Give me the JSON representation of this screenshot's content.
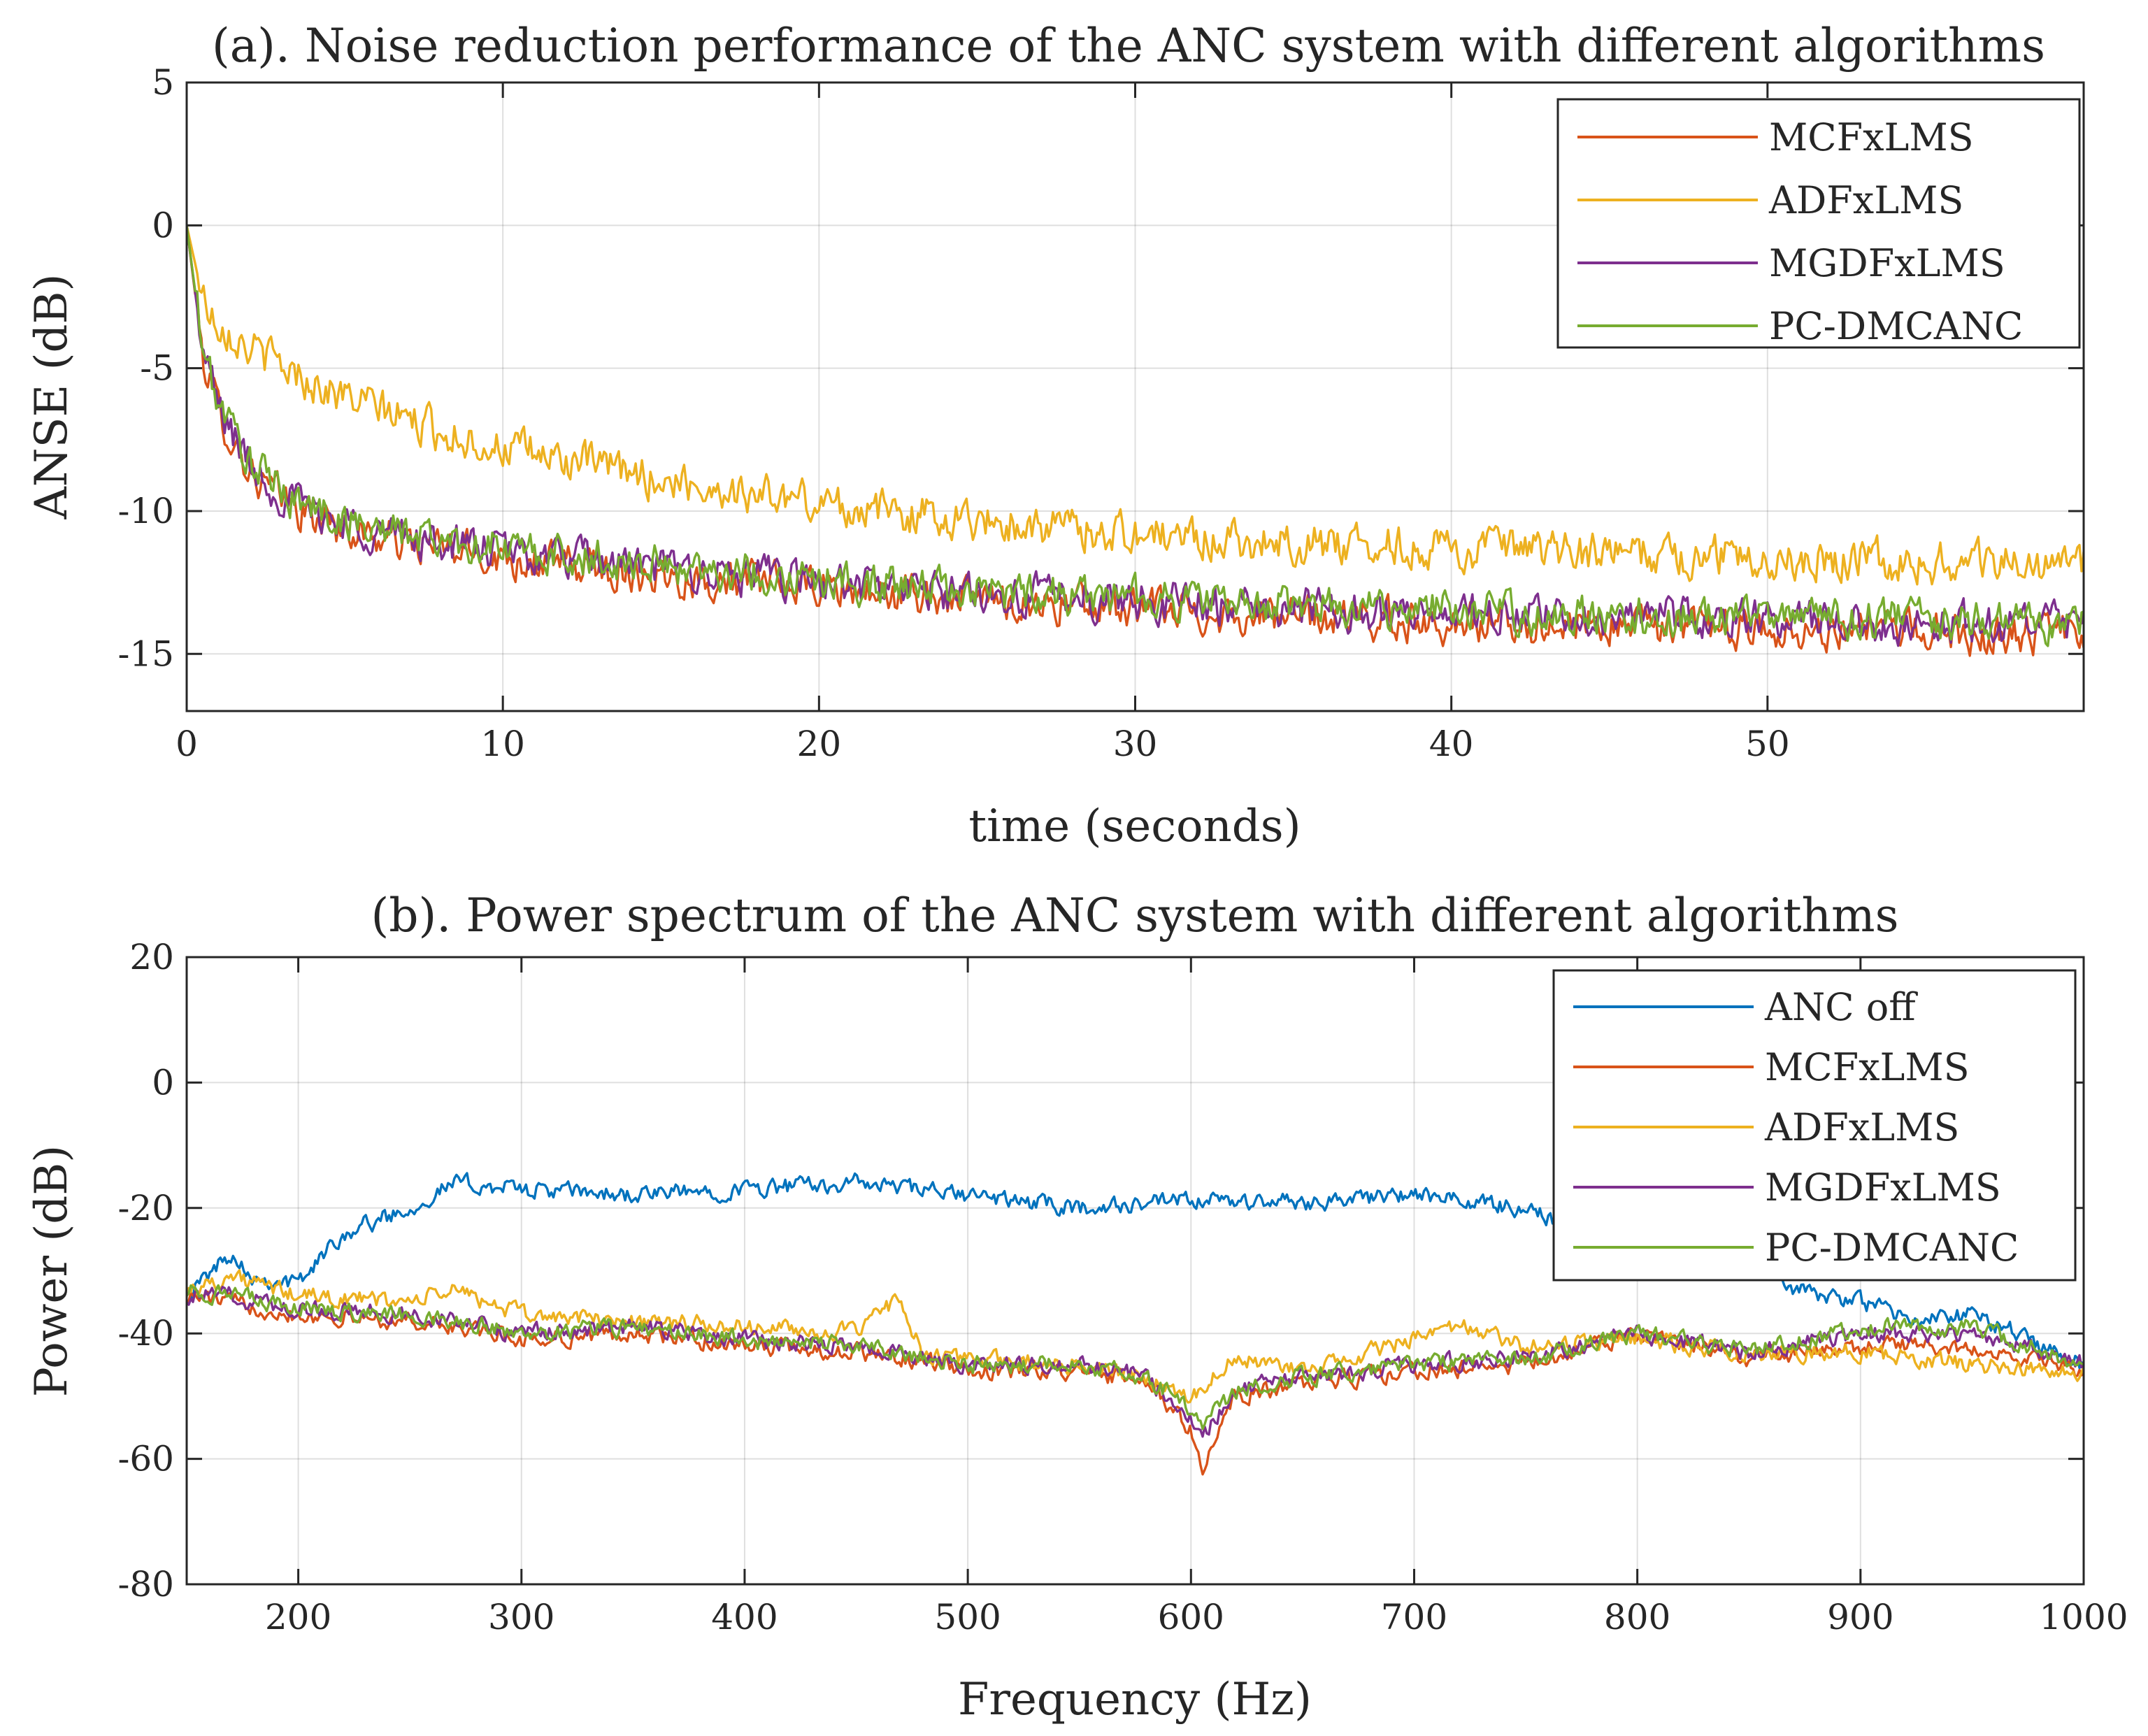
{
  "chart_data": [
    {
      "type": "line",
      "title": "(a). Noise reduction performance of the ANC system with different algorithms",
      "xlabel": "time (seconds)",
      "ylabel": "ANSE (dB)",
      "xlim": [
        0,
        60
      ],
      "ylim": [
        -17,
        5
      ],
      "xticks": [
        0,
        10,
        20,
        30,
        40,
        50
      ],
      "yticks": [
        5,
        0,
        -5,
        -10,
        -15
      ],
      "grid": true,
      "legend_position": "top-right",
      "series": [
        {
          "name": "MCFxLMS",
          "color": "#D95319",
          "x": [
            0,
            0.5,
            1,
            2,
            3,
            4,
            5,
            6,
            8,
            10,
            12,
            15,
            18,
            20,
            22,
            25,
            28,
            30,
            33,
            35,
            38,
            40,
            42,
            45,
            48,
            50,
            53,
            55,
            58,
            60
          ],
          "y": [
            0,
            -4.5,
            -6.5,
            -8.6,
            -9.6,
            -10.2,
            -10.6,
            -10.9,
            -11.3,
            -11.6,
            -11.9,
            -12.2,
            -12.5,
            -12.7,
            -12.9,
            -13.1,
            -13.3,
            -13.4,
            -13.6,
            -13.7,
            -13.8,
            -13.9,
            -14.0,
            -14.0,
            -14.1,
            -14.1,
            -14.2,
            -14.2,
            -14.3,
            -14.3
          ]
        },
        {
          "name": "ADFxLMS",
          "color": "#EDB120",
          "x": [
            0,
            0.5,
            1,
            2,
            3,
            4,
            5,
            6,
            8,
            10,
            12,
            15,
            18,
            20,
            22,
            25,
            28,
            30,
            33,
            35,
            38,
            40,
            42,
            45,
            48,
            50,
            53,
            55,
            58,
            60
          ],
          "y": [
            0,
            -2.5,
            -3.3,
            -4.3,
            -4.9,
            -5.5,
            -6.0,
            -6.4,
            -7.2,
            -7.8,
            -8.2,
            -8.9,
            -9.4,
            -9.7,
            -10.0,
            -10.3,
            -10.6,
            -10.8,
            -11.0,
            -11.1,
            -11.2,
            -11.3,
            -11.4,
            -11.5,
            -11.6,
            -11.6,
            -11.7,
            -11.8,
            -11.8,
            -11.9
          ]
        },
        {
          "name": "MGDFxLMS",
          "color": "#7E2F8E",
          "x": [
            0,
            0.5,
            1,
            2,
            3,
            4,
            5,
            6,
            8,
            10,
            12,
            15,
            18,
            20,
            22,
            25,
            28,
            30,
            33,
            35,
            38,
            40,
            42,
            45,
            48,
            50,
            53,
            55,
            58,
            60
          ],
          "y": [
            0,
            -4.4,
            -6.3,
            -8.4,
            -9.4,
            -10.0,
            -10.4,
            -10.7,
            -11.1,
            -11.4,
            -11.7,
            -12.0,
            -12.3,
            -12.5,
            -12.7,
            -12.9,
            -13.0,
            -13.1,
            -13.3,
            -13.4,
            -13.5,
            -13.6,
            -13.7,
            -13.7,
            -13.8,
            -13.8,
            -13.9,
            -13.9,
            -14.0,
            -14.0
          ]
        },
        {
          "name": "PC-DMCANC",
          "color": "#77AC30",
          "x": [
            0,
            0.5,
            1,
            2,
            3,
            4,
            5,
            6,
            8,
            10,
            12,
            15,
            18,
            20,
            22,
            25,
            28,
            30,
            33,
            35,
            38,
            40,
            42,
            45,
            48,
            50,
            53,
            55,
            58,
            60
          ],
          "y": [
            0,
            -4.3,
            -6.2,
            -8.3,
            -9.3,
            -9.9,
            -10.3,
            -10.6,
            -11.0,
            -11.3,
            -11.6,
            -11.9,
            -12.2,
            -12.4,
            -12.6,
            -12.8,
            -12.9,
            -13.0,
            -13.2,
            -13.3,
            -13.4,
            -13.5,
            -13.6,
            -13.6,
            -13.7,
            -13.7,
            -13.8,
            -13.8,
            -13.9,
            -13.9
          ]
        }
      ]
    },
    {
      "type": "line",
      "title": "(b). Power spectrum of the ANC system with different algorithms",
      "xlabel": "Frequency (Hz)",
      "ylabel": "Power (dB)",
      "xlim": [
        150,
        1000
      ],
      "ylim": [
        -80,
        20
      ],
      "xticks": [
        200,
        300,
        400,
        500,
        600,
        700,
        800,
        900,
        1000
      ],
      "yticks": [
        20,
        0,
        -20,
        -40,
        -60,
        -80
      ],
      "grid": true,
      "legend_position": "top-right",
      "series": [
        {
          "name": "ANC off",
          "color": "#0072BD",
          "x": [
            150,
            170,
            180,
            200,
            220,
            250,
            270,
            300,
            350,
            400,
            450,
            500,
            550,
            600,
            650,
            700,
            750,
            780,
            800,
            820,
            850,
            870,
            900,
            930,
            950,
            970,
            1000
          ],
          "y": [
            -34,
            -27,
            -31,
            -32,
            -24,
            -20,
            -16,
            -17,
            -18,
            -17,
            -16,
            -18,
            -20,
            -19,
            -19,
            -18,
            -20,
            -24,
            -27,
            -27,
            -28,
            -33,
            -35,
            -38,
            -37,
            -40,
            -45
          ]
        },
        {
          "name": "MCFxLMS",
          "color": "#D95319",
          "x": [
            150,
            170,
            200,
            250,
            270,
            300,
            350,
            400,
            450,
            470,
            500,
            550,
            580,
            600,
            605,
            620,
            650,
            700,
            750,
            800,
            850,
            900,
            950,
            1000
          ],
          "y": [
            -34,
            -35,
            -37,
            -38,
            -39,
            -41,
            -40,
            -42,
            -43,
            -44,
            -46,
            -46,
            -48,
            -55,
            -62,
            -50,
            -48,
            -46,
            -45,
            -40,
            -44,
            -42,
            -42,
            -46
          ]
        },
        {
          "name": "ADFxLMS",
          "color": "#EDB120",
          "x": [
            150,
            170,
            200,
            250,
            270,
            300,
            350,
            400,
            450,
            470,
            480,
            500,
            550,
            580,
            600,
            620,
            650,
            700,
            720,
            750,
            800,
            850,
            900,
            950,
            1000
          ],
          "y": [
            -33,
            -31,
            -34,
            -35,
            -33,
            -37,
            -38,
            -39,
            -40,
            -34,
            -44,
            -44,
            -45,
            -47,
            -50,
            -44,
            -46,
            -41,
            -39,
            -42,
            -41,
            -43,
            -43,
            -45,
            -46
          ]
        },
        {
          "name": "MGDFxLMS",
          "color": "#7E2F8E",
          "x": [
            150,
            170,
            200,
            250,
            270,
            300,
            350,
            400,
            450,
            470,
            500,
            550,
            580,
            600,
            605,
            620,
            650,
            700,
            750,
            800,
            850,
            900,
            950,
            1000
          ],
          "y": [
            -34,
            -34,
            -36,
            -37,
            -38,
            -40,
            -39,
            -41,
            -42,
            -43,
            -45,
            -45,
            -47,
            -53,
            -56,
            -49,
            -47,
            -45,
            -44,
            -40,
            -43,
            -40,
            -40,
            -45
          ]
        },
        {
          "name": "PC-DMCANC",
          "color": "#77AC30",
          "x": [
            150,
            170,
            200,
            250,
            270,
            300,
            350,
            400,
            450,
            470,
            500,
            550,
            580,
            600,
            605,
            620,
            650,
            700,
            750,
            800,
            850,
            900,
            950,
            1000
          ],
          "y": [
            -33,
            -34,
            -36,
            -37,
            -38,
            -40,
            -39,
            -41,
            -42,
            -43,
            -45,
            -45,
            -47,
            -52,
            -55,
            -49,
            -47,
            -45,
            -44,
            -40,
            -43,
            -39,
            -39,
            -45
          ]
        }
      ]
    }
  ]
}
